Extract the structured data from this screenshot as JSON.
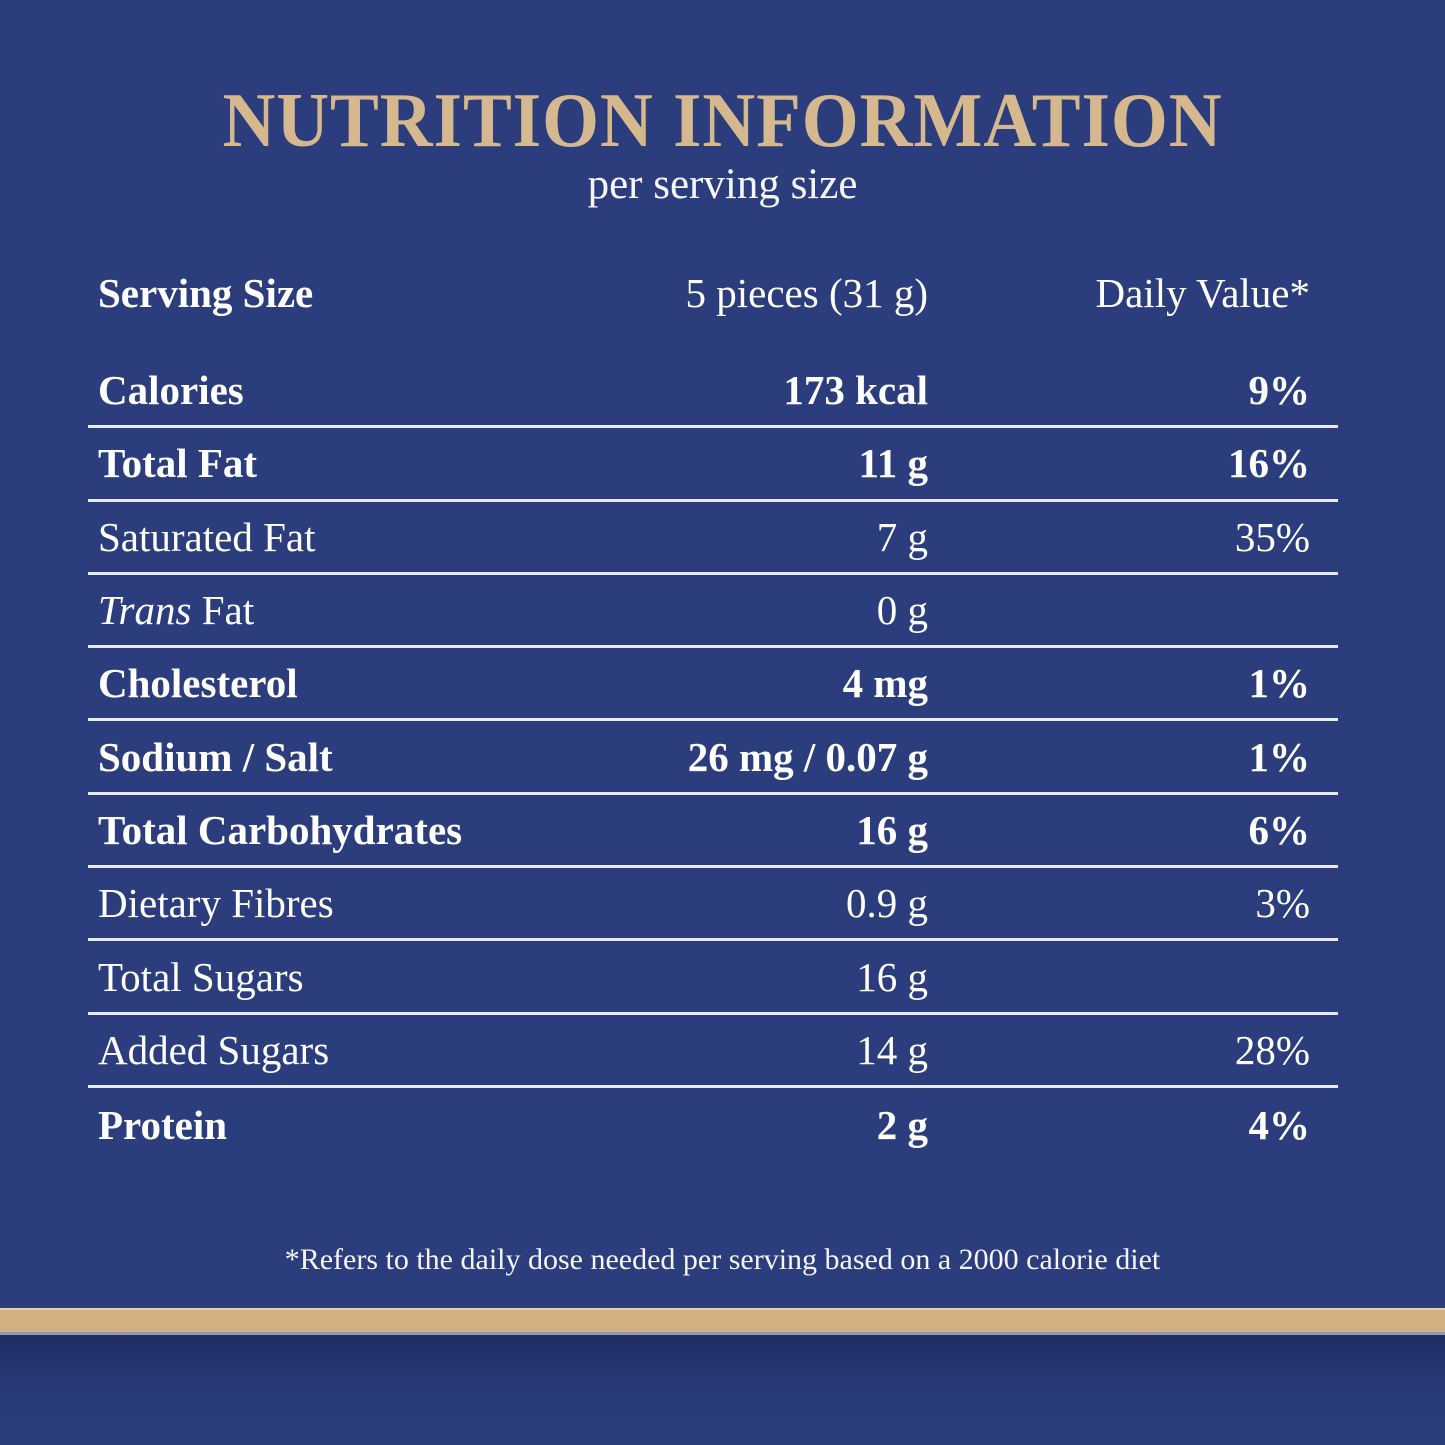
{
  "header": {
    "title": "NUTRITION INFORMATION",
    "subtitle": "per serving size"
  },
  "table": {
    "header": {
      "label": "Serving Size",
      "value": "5 pieces (31 g)",
      "daily": "Daily Value*"
    },
    "rows": [
      {
        "label": "Calories",
        "value": "173 kcal",
        "daily": "9%"
      },
      {
        "label": "Total Fat",
        "value": "11 g",
        "daily": "16%"
      },
      {
        "label": "Saturated Fat",
        "value": "7 g",
        "daily": "35%"
      },
      {
        "label_italic": "Trans",
        "label": " Fat",
        "value": "0 g",
        "daily": ""
      },
      {
        "label": "Cholesterol",
        "value": "4 mg",
        "daily": "1%"
      },
      {
        "label": "Sodium / Salt",
        "value": "26 mg / 0.07 g",
        "daily": "1%"
      },
      {
        "label": "Total Carbohydrates",
        "value": "16 g",
        "daily": "6%"
      },
      {
        "label": "Dietary Fibres",
        "value": "0.9 g",
        "daily": "3%"
      },
      {
        "label": "Total Sugars",
        "value": "16 g",
        "daily": ""
      },
      {
        "label": "Added Sugars",
        "value": "14 g",
        "daily": "28%"
      },
      {
        "label": "Protein",
        "value": "2 g",
        "daily": "4%"
      }
    ]
  },
  "footnote": "*Refers to the daily dose needed per serving based on a 2000 calorie diet",
  "colors": {
    "background": "#2b3d7c",
    "title_gold": "#d6b88e",
    "bar_gold": "#d3b082",
    "separator": "#e9ebf4",
    "text": "#ffffff"
  }
}
